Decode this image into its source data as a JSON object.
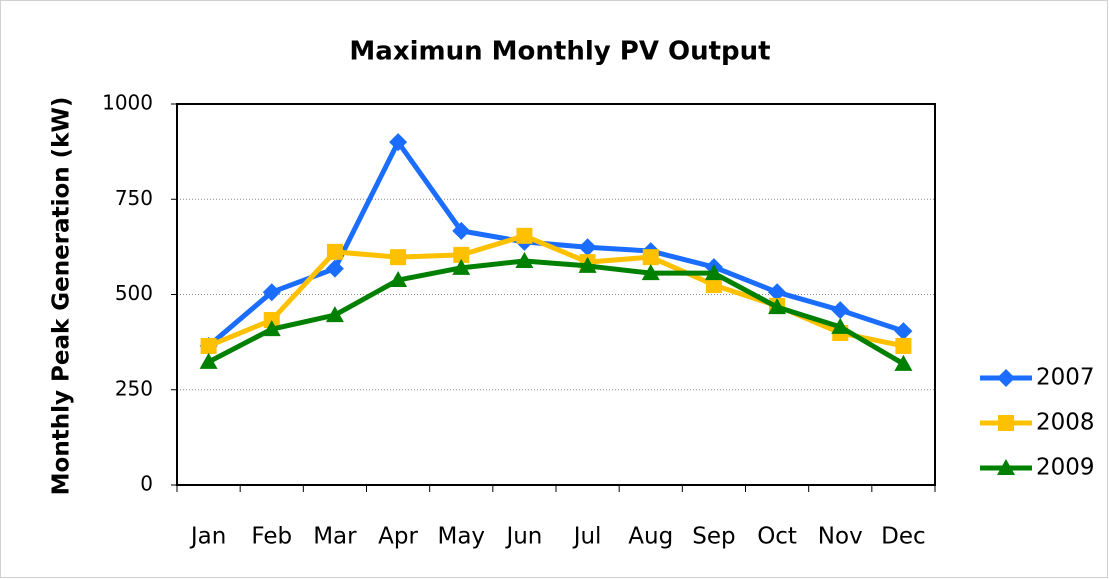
{
  "chart_data": {
    "type": "line",
    "title": "Maximun Monthly PV Output",
    "y_label": "Monthly Peak Generation (kW)",
    "categories": [
      "Jan",
      "Feb",
      "Mar",
      "Apr",
      "May",
      "Jun",
      "Jul",
      "Aug",
      "Sep",
      "Oct",
      "Nov",
      "Dec"
    ],
    "series": [
      {
        "name": "2007",
        "color": "#1a6dff",
        "marker": "diamond",
        "values": [
          365,
          506,
          568,
          900,
          667,
          638,
          624,
          614,
          572,
          506,
          459,
          404
        ]
      },
      {
        "name": "2008",
        "color": "#ffc000",
        "marker": "square",
        "values": [
          365,
          433,
          612,
          598,
          604,
          654,
          585,
          598,
          525,
          470,
          399,
          365
        ]
      },
      {
        "name": "2009",
        "color": "#008000",
        "marker": "triangle",
        "values": [
          323,
          409,
          446,
          538,
          570,
          588,
          575,
          556,
          556,
          467,
          415,
          318
        ]
      }
    ],
    "ylim": [
      0,
      1000
    ],
    "yticks": [
      0,
      250,
      500,
      750,
      1000
    ],
    "grid": true,
    "legend": "right"
  }
}
